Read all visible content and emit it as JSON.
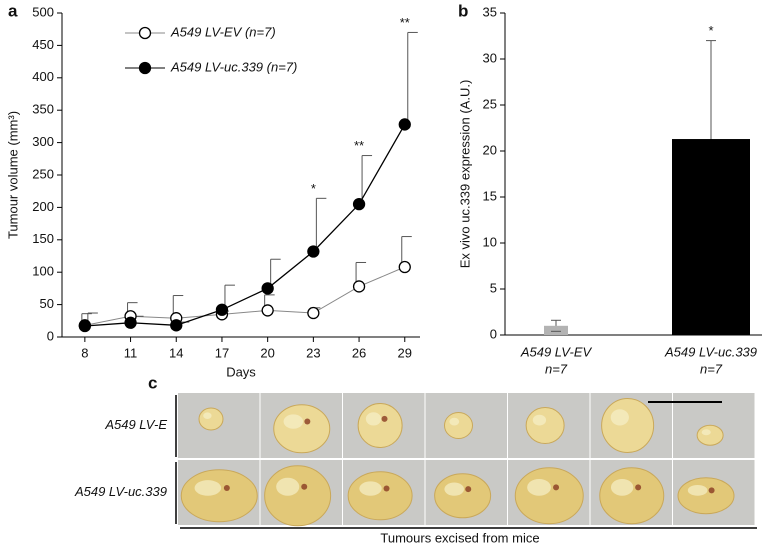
{
  "chart_data": [
    {
      "type": "line",
      "panel_label": "a",
      "y_label": "Tumour volume (mm³)",
      "x_label": "Days",
      "x": [
        8,
        11,
        14,
        17,
        20,
        23,
        26,
        29
      ],
      "xlim": [
        6.5,
        30
      ],
      "xticks": [
        8,
        11,
        14,
        17,
        20,
        23,
        26,
        29
      ],
      "ylim": [
        0,
        500
      ],
      "yticks": [
        0,
        50,
        100,
        150,
        200,
        250,
        300,
        350,
        400,
        450,
        500
      ],
      "series": [
        {
          "name": "A549 LV-EV (n=7)",
          "color": "#000000",
          "marker": "open",
          "values": [
            18,
            32,
            29,
            35,
            41,
            37,
            78,
            108
          ],
          "errors": [
            18,
            21,
            35,
            5,
            24,
            8,
            37,
            47
          ]
        },
        {
          "name": "A549 LV-uc.339 (n=7)",
          "color": "#000000",
          "marker": "filled",
          "values": [
            17,
            22,
            18,
            42,
            75,
            132,
            205,
            328
          ],
          "errors": [
            20,
            10,
            5,
            38,
            45,
            82,
            75,
            142
          ]
        }
      ],
      "annotations": [
        {
          "x": 23,
          "text": "*"
        },
        {
          "x": 26,
          "text": "**"
        },
        {
          "x": 29,
          "text": "**"
        }
      ]
    },
    {
      "type": "bar",
      "panel_label": "b",
      "y_label": "Ex vivo uc.339 expression (A.U.)",
      "categories": [
        "A549 LV-EV",
        "A549 LV-uc.339"
      ],
      "category_sublabels": [
        "n=7",
        "n=7"
      ],
      "values": [
        1,
        21.3
      ],
      "errors": [
        0.6,
        10.7
      ],
      "colors": [
        "#b3b3b3",
        "#000000"
      ],
      "ylim": [
        0,
        35
      ],
      "yticks": [
        0,
        5,
        10,
        15,
        20,
        25,
        30,
        35
      ],
      "annotations": [
        {
          "category": 1,
          "text": "*"
        }
      ]
    }
  ],
  "panel_c": {
    "label": "c",
    "rows": [
      "A549 LV-E",
      "A549 LV-uc.339"
    ],
    "caption": "Tumours excised from mice"
  }
}
